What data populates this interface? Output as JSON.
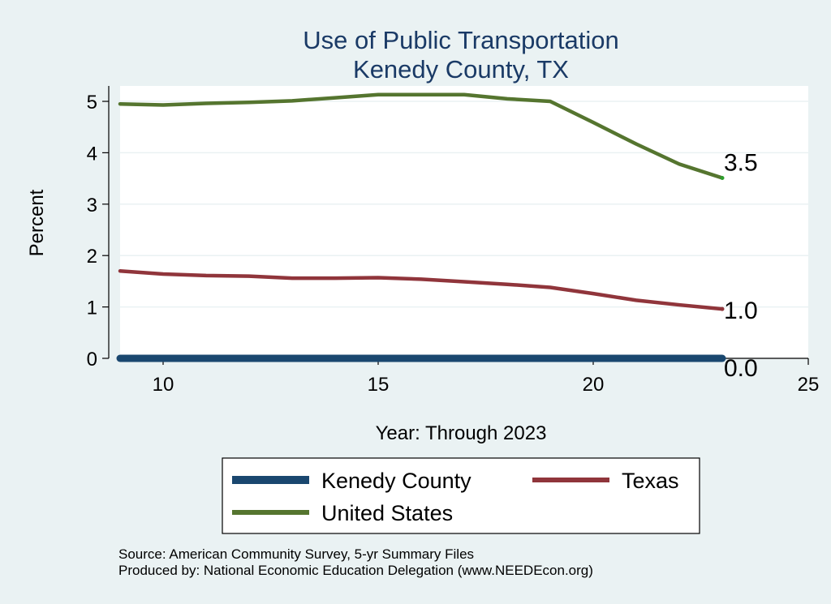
{
  "chart_data": {
    "type": "line",
    "title": "Use of Public Transportation",
    "subtitle": "Kenedy County, TX",
    "xlabel": "Year: Through 2023",
    "ylabel": "Percent",
    "xlim": [
      9,
      25
    ],
    "ylim": [
      0,
      5.3
    ],
    "xticks": [
      "10",
      "15",
      "20",
      "25"
    ],
    "yticks": [
      "0",
      "1",
      "2",
      "3",
      "4",
      "5"
    ],
    "grid": true,
    "legend_position": "bottom",
    "series": [
      {
        "name": "Kenedy County",
        "color": "#1a476f",
        "x": [
          9,
          10,
          11,
          12,
          13,
          14,
          15,
          16,
          17,
          18,
          19,
          20,
          21,
          22,
          23
        ],
        "values": [
          0,
          0,
          0,
          0,
          0,
          0,
          0,
          0,
          0,
          0,
          0,
          0,
          0,
          0,
          0
        ],
        "end_label": "0.0"
      },
      {
        "name": "Texas",
        "color": "#90353b",
        "x": [
          9,
          10,
          11,
          12,
          13,
          14,
          15,
          16,
          17,
          18,
          19,
          20,
          21,
          22,
          23
        ],
        "values": [
          1.7,
          1.64,
          1.61,
          1.6,
          1.56,
          1.56,
          1.57,
          1.54,
          1.49,
          1.44,
          1.38,
          1.26,
          1.13,
          1.04,
          0.96
        ],
        "end_label": "1.0"
      },
      {
        "name": "United States",
        "color": "#55752f",
        "x": [
          9,
          10,
          11,
          12,
          13,
          14,
          15,
          16,
          17,
          18,
          19,
          20,
          21,
          22,
          23
        ],
        "values": [
          4.95,
          4.93,
          4.96,
          4.98,
          5.01,
          5.07,
          5.13,
          5.13,
          5.13,
          5.05,
          5.0,
          4.59,
          4.17,
          3.78,
          3.51
        ],
        "end_label": "3.5"
      }
    ],
    "source_note": "Source: American Community Survey, 5-yr Summary Files",
    "producer_note": "Produced by: National Economic Education Delegation (www.NEEDEcon.org)"
  }
}
